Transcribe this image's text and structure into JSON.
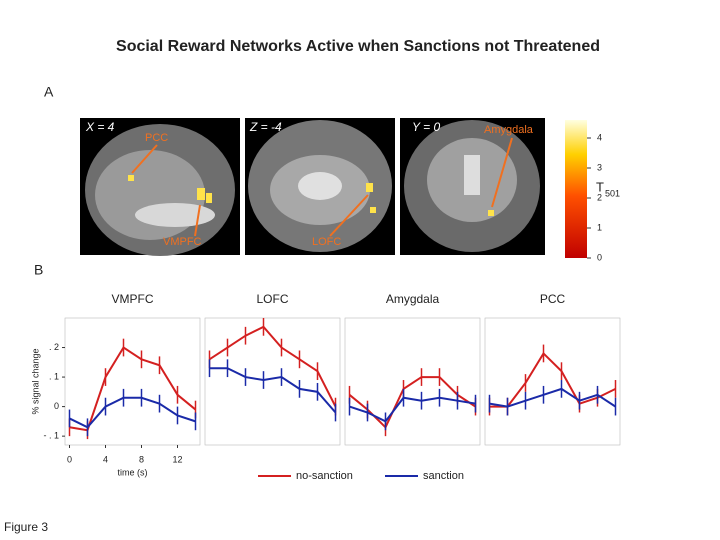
{
  "title": "Social Reward Networks Active when Sanctions not Threatened",
  "figure_label": "Figure 3",
  "panel_a": {
    "label": "A",
    "slices": [
      {
        "coord": "X = 4",
        "regions": [
          "PCC",
          "VMPFC"
        ]
      },
      {
        "coord": "Z = -4",
        "regions": [
          "LOFC"
        ]
      },
      {
        "coord": "Y = 0",
        "regions": [
          "Amygdala"
        ]
      }
    ],
    "colorbar": {
      "lim": [
        0,
        4.6
      ],
      "ticks": [
        0,
        1,
        2,
        3,
        4
      ],
      "label": "T",
      "subscript": "501"
    }
  },
  "panel_b_label": "B",
  "chart_data": [
    {
      "type": "line",
      "title": "VMPFC",
      "xlabel": "time (s)",
      "ylabel": "% signal change",
      "x": [
        0,
        2,
        4,
        6,
        8,
        10,
        12,
        14
      ],
      "xlim": [
        -0.5,
        14.5
      ],
      "xticks": [
        0,
        4,
        8,
        12
      ],
      "ylim": [
        -0.13,
        0.3
      ],
      "yticks": [
        {
          "value": 0.2,
          "label": ". 2"
        },
        {
          "value": 0.1,
          "label": ". 1"
        },
        0,
        {
          "value": -0.1,
          "label": "- . 1"
        }
      ],
      "series": [
        {
          "name": "no-sanction",
          "color": "#d42020",
          "error": 0.03,
          "values": [
            -0.07,
            -0.08,
            0.1,
            0.2,
            0.16,
            0.14,
            0.04,
            -0.01
          ]
        },
        {
          "name": "sanction",
          "color": "#1a2aa8",
          "error": 0.03,
          "values": [
            -0.04,
            -0.07,
            0.0,
            0.03,
            0.03,
            0.01,
            -0.03,
            -0.05
          ]
        }
      ]
    },
    {
      "type": "line",
      "title": "LOFC",
      "x": [
        0,
        2,
        4,
        6,
        8,
        10,
        12,
        14
      ],
      "xlim": [
        -0.5,
        14.5
      ],
      "ylim": [
        -0.13,
        0.3
      ],
      "series": [
        {
          "color": "#d42020",
          "error": 0.03,
          "values": [
            0.16,
            0.2,
            0.24,
            0.27,
            0.2,
            0.16,
            0.12,
            0.0
          ]
        },
        {
          "color": "#1a2aa8",
          "error": 0.03,
          "values": [
            0.13,
            0.13,
            0.1,
            0.09,
            0.1,
            0.06,
            0.05,
            -0.02
          ]
        }
      ]
    },
    {
      "type": "line",
      "title": "Amygdala",
      "x": [
        0,
        2,
        4,
        6,
        8,
        10,
        12,
        14
      ],
      "xlim": [
        -0.5,
        14.5
      ],
      "ylim": [
        -0.13,
        0.3
      ],
      "series": [
        {
          "color": "#d42020",
          "error": 0.03,
          "values": [
            0.04,
            -0.01,
            -0.07,
            0.06,
            0.1,
            0.1,
            0.04,
            0.0
          ]
        },
        {
          "color": "#1a2aa8",
          "error": 0.03,
          "values": [
            0.0,
            -0.02,
            -0.05,
            0.03,
            0.02,
            0.03,
            0.02,
            0.01
          ]
        }
      ]
    },
    {
      "type": "line",
      "title": "PCC",
      "x": [
        0,
        2,
        4,
        6,
        8,
        10,
        12,
        14
      ],
      "xlim": [
        -0.5,
        14.5
      ],
      "ylim": [
        -0.13,
        0.3
      ],
      "series": [
        {
          "color": "#d42020",
          "error": 0.03,
          "values": [
            0.0,
            0.0,
            0.08,
            0.18,
            0.12,
            0.01,
            0.03,
            0.06
          ]
        },
        {
          "color": "#1a2aa8",
          "error": 0.03,
          "values": [
            0.01,
            0.0,
            0.02,
            0.04,
            0.06,
            0.02,
            0.04,
            0.0
          ]
        }
      ]
    }
  ]
}
